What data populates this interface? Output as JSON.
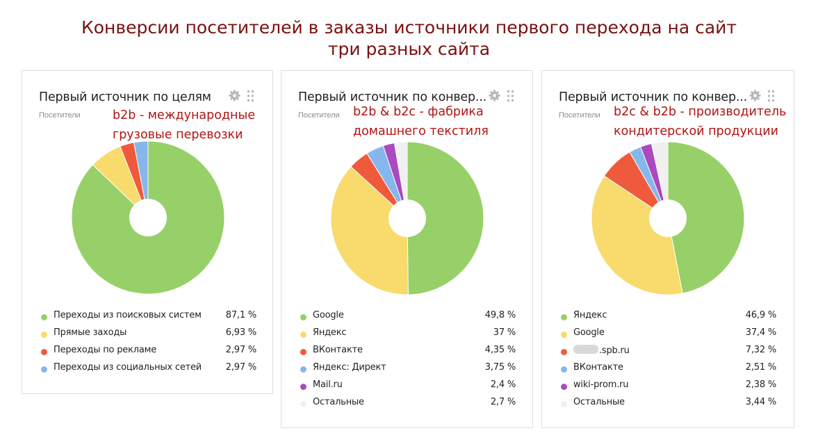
{
  "page": {
    "title_line1": "Конверсии посетителей в заказы источники первого перехода на сайт",
    "title_line2": "три разных сайта"
  },
  "colors": {
    "green": "#97d068",
    "yellow": "#f8db6c",
    "red": "#f05a3c",
    "blue": "#86b7ec",
    "purple": "#a94ac0",
    "light": "#f0f0f0",
    "note": "#b01515",
    "title": "#7a1010"
  },
  "icons": [
    "gear-icon",
    "drag-handle-icon"
  ],
  "widgets": [
    {
      "title": "Первый источник по целям",
      "subtitle": "Посетители",
      "note_line1": "b2b - международные",
      "note_line2": "грузовые перевозки"
    },
    {
      "title": "Первый источник по конвер...",
      "subtitle": "Посетители",
      "note_line1": "b2b & b2c - фабрика",
      "note_line2": "домашнего текстиля"
    },
    {
      "title": "Первый источник по конвер...",
      "subtitle": "Посетители",
      "note_line1": "b2c & b2b - производитель",
      "note_line2": "кондитерской продукции"
    }
  ],
  "chart_data": [
    {
      "type": "pie",
      "title": "Первый источник по целям",
      "subtitle": "Посетители",
      "categories": [
        "Переходы из поисковых систем",
        "Прямые заходы",
        "Переходы по рекламе",
        "Переходы из социальных сетей"
      ],
      "values": [
        87.1,
        6.93,
        2.97,
        2.97
      ],
      "value_labels": [
        "87,1 %",
        "6,93 %",
        "2,97 %",
        "2,97 %"
      ],
      "colors": [
        "#97d068",
        "#f8db6c",
        "#f05a3c",
        "#86b7ec"
      ]
    },
    {
      "type": "pie",
      "title": "Первый источник по конвер...",
      "subtitle": "Посетители",
      "categories": [
        "Google",
        "Яндекс",
        "ВКонтакте",
        "Яндекс: Директ",
        "Mail.ru",
        "Остальные"
      ],
      "values": [
        49.8,
        37,
        4.35,
        3.75,
        2.4,
        2.7
      ],
      "value_labels": [
        "49,8 %",
        "37 %",
        "4,35 %",
        "3,75 %",
        "2,4 %",
        "2,7 %"
      ],
      "colors": [
        "#97d068",
        "#f8db6c",
        "#f05a3c",
        "#86b7ec",
        "#a94ac0",
        "#f0f0f0"
      ]
    },
    {
      "type": "pie",
      "title": "Первый источник по конвер...",
      "subtitle": "Посетители",
      "categories": [
        "Яндекс",
        "Google",
        ".spb.ru",
        "ВКонтакте",
        "wiki-prom.ru",
        "Остальные"
      ],
      "values": [
        46.9,
        37.4,
        7.32,
        2.51,
        2.38,
        3.44
      ],
      "value_labels": [
        "46,9 %",
        "37,4 %",
        "7,32 %",
        "2,51 %",
        "2,38 %",
        "3,44 %"
      ],
      "colors": [
        "#97d068",
        "#f8db6c",
        "#f05a3c",
        "#86b7ec",
        "#a94ac0",
        "#f0f0f0"
      ]
    }
  ]
}
